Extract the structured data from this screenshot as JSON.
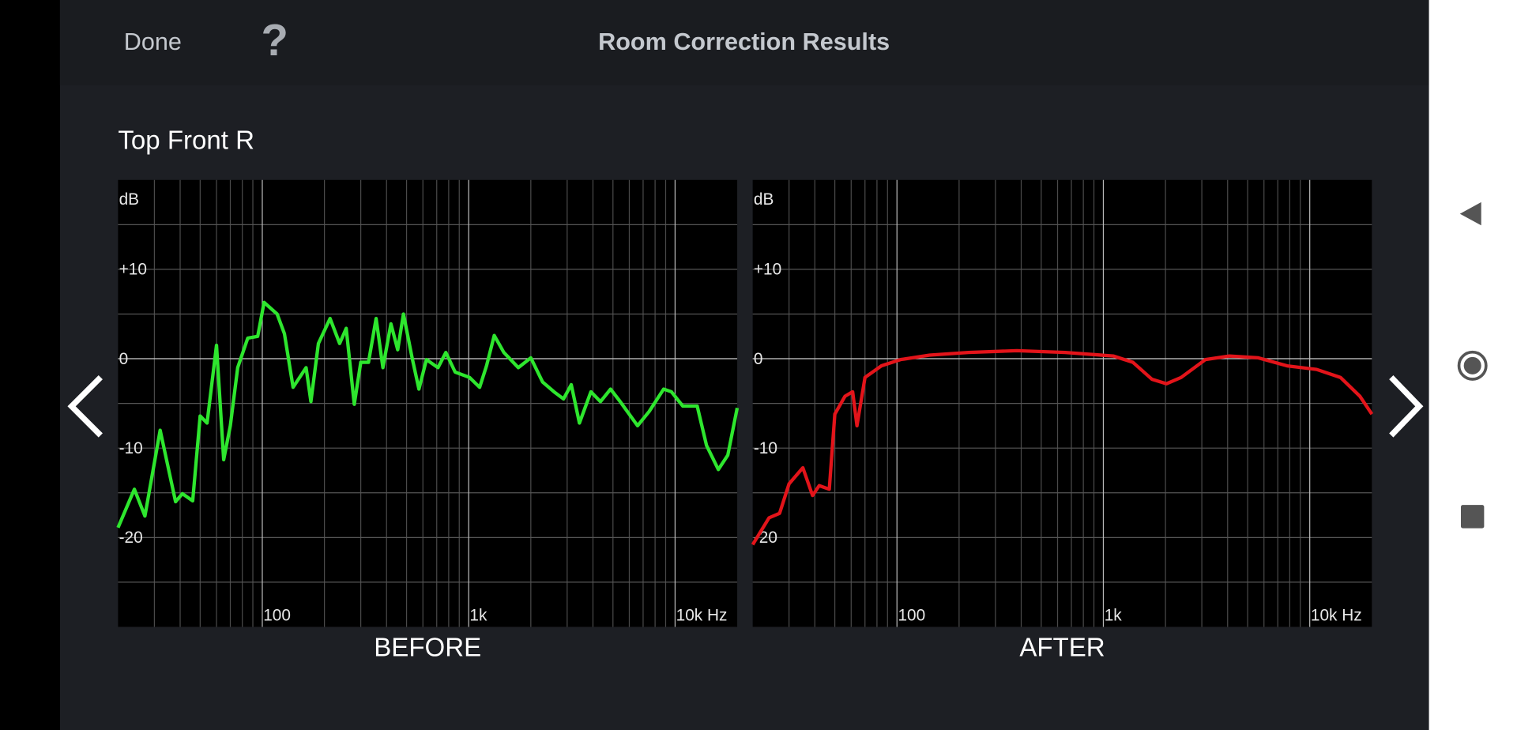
{
  "header": {
    "done": "Done",
    "help": "?",
    "title": "Room Correction Results"
  },
  "speaker": "Top Front R",
  "chart_data": [
    {
      "type": "line",
      "title": "BEFORE",
      "y_label": "dB",
      "xscale": "log",
      "xlim": [
        20,
        20000
      ],
      "ylim": [
        -30,
        20
      ],
      "xticks": [
        {
          "value": 100,
          "label": "100"
        },
        {
          "value": 1000,
          "label": "1k"
        },
        {
          "value": 10000,
          "label": "10k Hz"
        }
      ],
      "yticks": [
        {
          "value": 10,
          "label": "+10"
        },
        0,
        -10,
        -20
      ],
      "ygrid": [
        15,
        10,
        5,
        0,
        -5,
        -10,
        -15,
        -20,
        -25
      ],
      "grid": true,
      "x": [
        20,
        24,
        27,
        32,
        38,
        41,
        46,
        50,
        54,
        60,
        65,
        70,
        76,
        85,
        95,
        102,
        118,
        128,
        141,
        163,
        172,
        187,
        213,
        237,
        255,
        279,
        300,
        327,
        356,
        384,
        420,
        453,
        483,
        532,
        574,
        624,
        710,
        775,
        860,
        1010,
        1130,
        1220,
        1330,
        1480,
        1740,
        2000,
        2280,
        2590,
        2880,
        3140,
        3440,
        3910,
        4350,
        4870,
        5420,
        6580,
        7490,
        8800,
        9600,
        10900,
        12800,
        14200,
        16200,
        18000,
        20000
      ],
      "series": [
        {
          "name": "Before",
          "color": "#2ee62e",
          "values": [
            -18.9,
            -14.6,
            -17.6,
            -8.0,
            -16.0,
            -15.1,
            -15.9,
            -6.4,
            -7.2,
            1.5,
            -11.3,
            -7.5,
            -1.0,
            2.3,
            2.5,
            6.3,
            5.0,
            2.8,
            -3.2,
            -1.0,
            -4.8,
            1.7,
            4.5,
            1.7,
            3.4,
            -5.1,
            -0.4,
            -0.4,
            4.5,
            -1.0,
            3.9,
            1.0,
            5.0,
            0.1,
            -3.4,
            -0.1,
            -1.0,
            0.7,
            -1.5,
            -2.1,
            -3.2,
            -0.8,
            2.6,
            0.7,
            -1.0,
            0.1,
            -2.6,
            -3.7,
            -4.5,
            -2.9,
            -7.2,
            -3.7,
            -4.8,
            -3.4,
            -4.8,
            -7.5,
            -5.9,
            -3.4,
            -3.7,
            -5.3,
            -5.3,
            -9.7,
            -12.4,
            -10.8,
            -5.5
          ]
        }
      ]
    },
    {
      "type": "line",
      "title": "AFTER",
      "y_label": "dB",
      "xscale": "log",
      "xlim": [
        20,
        20000
      ],
      "ylim": [
        -30,
        20
      ],
      "xticks": [
        {
          "value": 100,
          "label": "100"
        },
        {
          "value": 1000,
          "label": "1k"
        },
        {
          "value": 10000,
          "label": "10k Hz"
        }
      ],
      "yticks": [
        {
          "value": 10,
          "label": "+10"
        },
        0,
        -10,
        -20
      ],
      "ygrid": [
        15,
        10,
        5,
        0,
        -5,
        -10,
        -15,
        -20,
        -25
      ],
      "grid": true,
      "x": [
        20,
        24,
        27,
        30,
        35,
        39,
        42,
        47,
        50,
        56,
        61,
        64,
        70,
        84,
        104,
        144,
        222,
        381,
        653,
        1120,
        1390,
        1720,
        2020,
        2380,
        3120,
        4080,
        5630,
        7770,
        10800,
        14100,
        17500,
        20000
      ],
      "series": [
        {
          "name": "After",
          "color": "#e3141a",
          "values": [
            -20.8,
            -17.8,
            -17.3,
            -14.0,
            -12.2,
            -15.3,
            -14.2,
            -14.6,
            -6.2,
            -4.2,
            -3.7,
            -7.5,
            -2.1,
            -0.8,
            -0.1,
            0.4,
            0.7,
            0.9,
            0.7,
            0.3,
            -0.4,
            -2.3,
            -2.8,
            -2.1,
            -0.1,
            0.3,
            0.1,
            -0.8,
            -1.2,
            -2.1,
            -4.2,
            -6.2
          ]
        }
      ]
    }
  ]
}
